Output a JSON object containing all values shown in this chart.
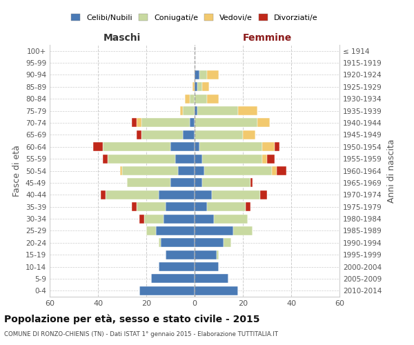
{
  "age_groups": [
    "0-4",
    "5-9",
    "10-14",
    "15-19",
    "20-24",
    "25-29",
    "30-34",
    "35-39",
    "40-44",
    "45-49",
    "50-54",
    "55-59",
    "60-64",
    "65-69",
    "70-74",
    "75-79",
    "80-84",
    "85-89",
    "90-94",
    "95-99",
    "100+"
  ],
  "birth_years": [
    "2010-2014",
    "2005-2009",
    "2000-2004",
    "1995-1999",
    "1990-1994",
    "1985-1989",
    "1980-1984",
    "1975-1979",
    "1970-1974",
    "1965-1969",
    "1960-1964",
    "1955-1959",
    "1950-1954",
    "1945-1949",
    "1940-1944",
    "1935-1939",
    "1930-1934",
    "1925-1929",
    "1920-1924",
    "1915-1919",
    "≤ 1914"
  ],
  "colors": {
    "celibi": "#4a7ab5",
    "coniugati": "#c8d9a0",
    "vedovi": "#f2c96e",
    "divorziati": "#c0281a"
  },
  "maschi": {
    "celibi": [
      23,
      18,
      15,
      12,
      14,
      16,
      13,
      12,
      15,
      10,
      7,
      8,
      10,
      5,
      2,
      0,
      0,
      0,
      0,
      0,
      0
    ],
    "coniugati": [
      0,
      0,
      0,
      0,
      1,
      4,
      8,
      12,
      22,
      18,
      23,
      28,
      28,
      17,
      20,
      5,
      2,
      0,
      0,
      0,
      0
    ],
    "vedovi": [
      0,
      0,
      0,
      0,
      0,
      0,
      0,
      0,
      0,
      0,
      1,
      0,
      0,
      0,
      2,
      1,
      2,
      1,
      0,
      0,
      0
    ],
    "divorziati": [
      0,
      0,
      0,
      0,
      0,
      0,
      2,
      2,
      2,
      0,
      0,
      2,
      4,
      2,
      2,
      0,
      0,
      0,
      0,
      0,
      0
    ]
  },
  "femmine": {
    "celibi": [
      18,
      14,
      10,
      9,
      12,
      16,
      8,
      5,
      7,
      3,
      4,
      3,
      2,
      0,
      0,
      1,
      0,
      1,
      2,
      0,
      0
    ],
    "coniugati": [
      0,
      0,
      0,
      1,
      3,
      8,
      14,
      16,
      20,
      20,
      28,
      25,
      26,
      20,
      26,
      17,
      5,
      2,
      3,
      0,
      0
    ],
    "vedovi": [
      0,
      0,
      0,
      0,
      0,
      0,
      0,
      0,
      0,
      0,
      2,
      2,
      5,
      5,
      5,
      8,
      5,
      3,
      5,
      0,
      0
    ],
    "divorziati": [
      0,
      0,
      0,
      0,
      0,
      0,
      0,
      2,
      3,
      1,
      4,
      3,
      2,
      0,
      0,
      0,
      0,
      0,
      0,
      0,
      0
    ]
  },
  "xlim": 60,
  "title": "Popolazione per età, sesso e stato civile - 2015",
  "subtitle": "COMUNE DI RONZO-CHIENIS (TN) - Dati ISTAT 1° gennaio 2015 - Elaborazione TUTTITALIA.IT",
  "ylabel": "Fasce di età",
  "ylabel_right": "Anni di nascita",
  "xlabel_left": "Maschi",
  "xlabel_right": "Femmine",
  "legend_labels": [
    "Celibi/Nubili",
    "Coniugati/e",
    "Vedovi/e",
    "Divorziati/e"
  ]
}
